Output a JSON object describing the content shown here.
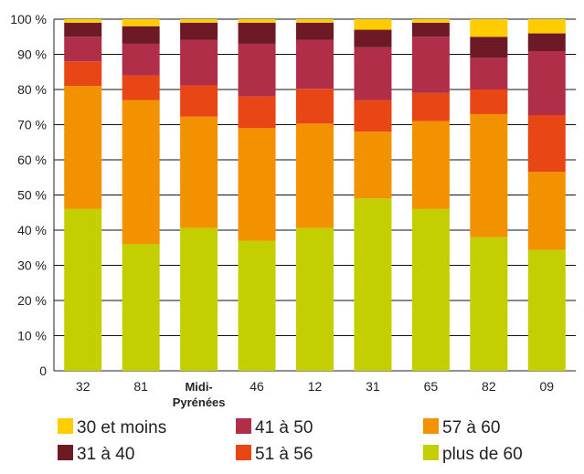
{
  "chart_data": {
    "type": "bar",
    "stacked": true,
    "percent": true,
    "categories": [
      "32",
      "81",
      "Midi-Pyrénées",
      "46",
      "12",
      "31",
      "65",
      "82",
      "09"
    ],
    "category_lines": [
      [
        "32"
      ],
      [
        "81"
      ],
      [
        "Midi-",
        "Pyrénées"
      ],
      [
        "46"
      ],
      [
        "12"
      ],
      [
        "31"
      ],
      [
        "65"
      ],
      [
        "82"
      ],
      [
        "09"
      ]
    ],
    "bold_category": "Midi-Pyrénées",
    "ylim": [
      0,
      100
    ],
    "yticks": [
      0,
      10,
      20,
      30,
      40,
      50,
      60,
      70,
      80,
      90,
      100
    ],
    "ytick_labels": [
      "0",
      "10 %",
      "20 %",
      "30 %",
      "40 %",
      "50 %",
      "60 %",
      "70 %",
      "80 %",
      "90 %",
      "100 %"
    ],
    "grid": "horizontal",
    "legend_position": "bottom",
    "series": [
      {
        "name": "plus de 60",
        "color": "#c3cf00",
        "values": [
          46,
          36,
          41,
          37,
          41,
          49,
          46,
          38,
          34
        ]
      },
      {
        "name": "57 à 60",
        "color": "#f39200",
        "values": [
          35,
          41,
          32,
          32,
          30,
          19,
          25,
          35,
          22
        ]
      },
      {
        "name": "51 à 56",
        "color": "#e84715",
        "values": [
          7,
          7,
          9,
          9,
          10,
          9,
          8,
          7,
          16
        ]
      },
      {
        "name": "41 à 50",
        "color": "#b02e47",
        "values": [
          7,
          9,
          13,
          15,
          14,
          15,
          16,
          9,
          18
        ]
      },
      {
        "name": "31 à 40",
        "color": "#6e1a26",
        "values": [
          4,
          5,
          5,
          6,
          5,
          5,
          4,
          6,
          5
        ]
      },
      {
        "name": "30 et moins",
        "color": "#ffcc00",
        "values": [
          1,
          2,
          1,
          1,
          1,
          3,
          1,
          5,
          4
        ]
      }
    ],
    "legend_order": [
      "30 et moins",
      "41 à 50",
      "57 à 60",
      "31 à 40",
      "51 à 56",
      "plus de 60"
    ]
  }
}
